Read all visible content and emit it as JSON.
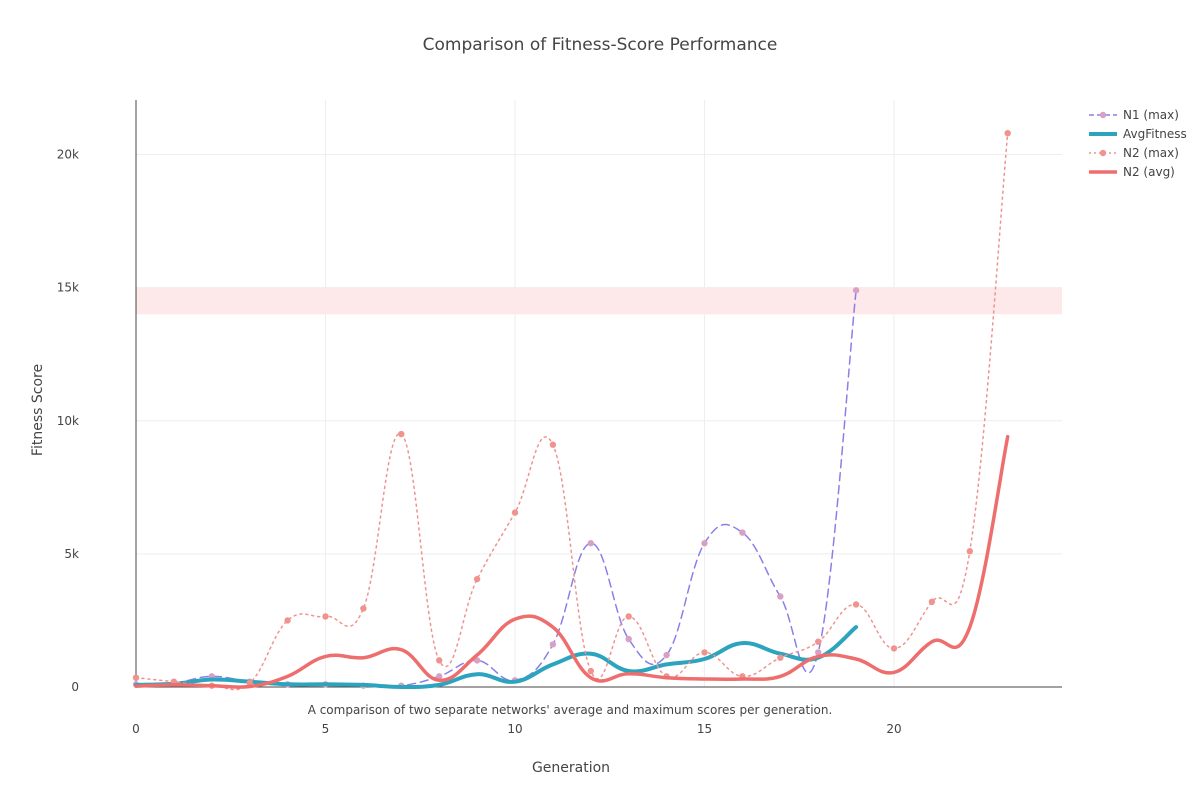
{
  "chart_data": {
    "type": "line",
    "title": "Comparison of Fitness-Score Performance",
    "xlabel": "Generation",
    "ylabel": "Fitness Score",
    "annotation": "A comparison of two separate networks' average and maximum scores per generation.",
    "xlim": [
      0,
      24.5
    ],
    "ylim": [
      0,
      22000
    ],
    "xticks": [
      0,
      5,
      10,
      15,
      20
    ],
    "xtick_labels": [
      "0",
      "5",
      "10",
      "15",
      "20"
    ],
    "yticks": [
      0,
      5000,
      10000,
      15000,
      20000
    ],
    "ytick_labels": [
      "0",
      "5k",
      "10k",
      "15k",
      "20k"
    ],
    "grid": true,
    "legend_position": "top-right",
    "shaded_band": {
      "y0": 14000,
      "y1": 15000,
      "color": "#fde8ea"
    },
    "series": [
      {
        "name": "N1 (max)",
        "color": "#8b7fe8",
        "point_color": "#d9a0c6",
        "dash": "dash",
        "markers": true,
        "width": 1.5,
        "x": [
          0,
          1,
          2,
          3,
          4,
          5,
          6,
          7,
          8,
          9,
          10,
          11,
          12,
          13,
          14,
          15,
          16,
          17,
          18,
          19
        ],
        "y": [
          100,
          150,
          400,
          200,
          100,
          100,
          50,
          50,
          400,
          1000,
          250,
          1600,
          5400,
          1800,
          1200,
          5400,
          5800,
          3400,
          1300,
          14900
        ]
      },
      {
        "name": "AvgFitness",
        "color": "#2ca4be",
        "dash": "solid",
        "markers": false,
        "width": 4,
        "x": [
          0,
          1,
          2,
          3,
          4,
          5,
          6,
          7,
          8,
          9,
          10,
          11,
          12,
          13,
          14,
          15,
          16,
          17,
          18,
          19
        ],
        "y": [
          80,
          120,
          280,
          200,
          100,
          100,
          80,
          0,
          80,
          480,
          200,
          850,
          1250,
          600,
          850,
          1050,
          1650,
          1250,
          1100,
          2250
        ]
      },
      {
        "name": "N2 (max)",
        "color": "#f0938e",
        "point_color": "#f0938e",
        "dash": "dot",
        "markers": true,
        "width": 1.5,
        "x": [
          0,
          1,
          2,
          3,
          4,
          5,
          6,
          7,
          8,
          9,
          10,
          11,
          12,
          13,
          14,
          15,
          16,
          17,
          18,
          19,
          20,
          21,
          22,
          23
        ],
        "y": [
          350,
          200,
          50,
          150,
          2500,
          2650,
          2950,
          9500,
          1000,
          4050,
          6550,
          9100,
          600,
          2650,
          400,
          1300,
          400,
          1100,
          1700,
          3100,
          1450,
          3200,
          5100,
          20800
        ]
      },
      {
        "name": "N2 (avg)",
        "color": "#ee6e6e",
        "dash": "solid",
        "markers": false,
        "width": 3.5,
        "x": [
          0,
          1,
          2,
          3,
          4,
          5,
          6,
          7,
          8,
          9,
          10,
          11,
          12,
          13,
          14,
          15,
          16,
          17,
          18,
          19,
          20,
          21,
          22,
          23
        ],
        "y": [
          30,
          80,
          50,
          20,
          400,
          1150,
          1100,
          1400,
          250,
          1200,
          2550,
          2250,
          350,
          500,
          350,
          300,
          300,
          400,
          1150,
          1050,
          550,
          1700,
          2250,
          9400
        ]
      }
    ]
  }
}
